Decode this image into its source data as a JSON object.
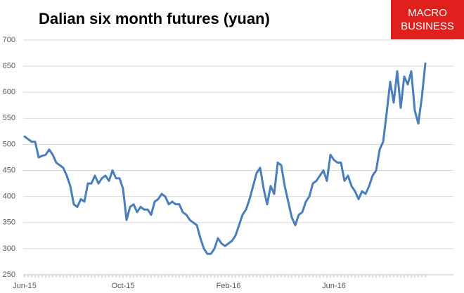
{
  "logo": {
    "line1": "MACRO",
    "line2": "BUSINESS"
  },
  "chart_data": {
    "type": "line",
    "title": "Dalian six month futures (yuan)",
    "categories": [
      "Jun-15",
      null,
      null,
      null,
      null,
      null,
      null,
      null,
      null,
      null,
      null,
      null,
      null,
      null,
      null,
      null,
      null,
      null,
      null,
      null,
      null,
      null,
      null,
      null,
      null,
      null,
      null,
      null,
      "Oct-15",
      null,
      null,
      null,
      null,
      null,
      null,
      null,
      null,
      null,
      null,
      null,
      null,
      null,
      null,
      null,
      null,
      null,
      null,
      null,
      null,
      null,
      null,
      null,
      null,
      null,
      null,
      null,
      null,
      null,
      "Feb-16",
      null,
      null,
      null,
      null,
      null,
      null,
      null,
      null,
      null,
      null,
      null,
      null,
      null,
      null,
      null,
      null,
      null,
      null,
      null,
      null,
      null,
      null,
      null,
      null,
      null,
      null,
      null,
      null,
      null,
      "Jun-16",
      null,
      null,
      null,
      null,
      null,
      null,
      null,
      null,
      null,
      null,
      null,
      null,
      null,
      null,
      null,
      null,
      null,
      null,
      null,
      null,
      null,
      null,
      null,
      null,
      null,
      null
    ],
    "values": [
      515,
      510,
      505,
      505,
      475,
      478,
      480,
      490,
      480,
      465,
      460,
      455,
      440,
      420,
      385,
      380,
      395,
      390,
      425,
      425,
      440,
      425,
      435,
      440,
      430,
      450,
      435,
      435,
      415,
      355,
      380,
      385,
      370,
      380,
      375,
      375,
      365,
      390,
      395,
      405,
      400,
      385,
      390,
      385,
      385,
      370,
      365,
      355,
      350,
      345,
      320,
      300,
      290,
      290,
      300,
      320,
      310,
      305,
      310,
      315,
      325,
      345,
      365,
      375,
      395,
      420,
      445,
      455,
      415,
      385,
      420,
      405,
      465,
      460,
      420,
      390,
      360,
      345,
      365,
      370,
      390,
      400,
      425,
      430,
      440,
      450,
      430,
      480,
      470,
      465,
      465,
      430,
      440,
      420,
      410,
      395,
      410,
      405,
      420,
      440,
      450,
      490,
      505,
      560,
      620,
      580,
      640,
      570,
      630,
      615,
      640,
      565,
      540,
      590,
      655
    ],
    "color": "#4a7ebb",
    "ylim": [
      250,
      700
    ],
    "yticks": [
      250,
      300,
      350,
      400,
      450,
      500,
      550,
      600,
      650,
      700
    ],
    "grid": true
  }
}
